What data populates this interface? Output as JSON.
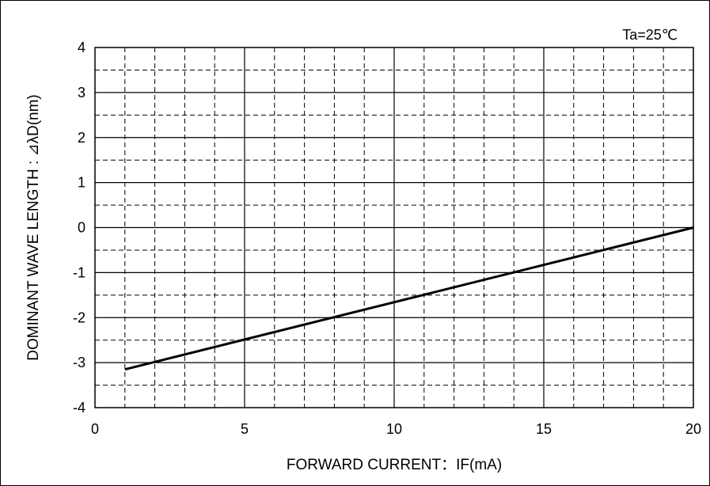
{
  "chart_data": {
    "type": "line",
    "annotation": "Ta=25℃",
    "xlabel": "FORWARD CURRENT：IF(mA)",
    "ylabel": "DOMINANT WAVE LENGTH : ⊿λD(nm)",
    "xlim": [
      0,
      20
    ],
    "ylim": [
      -4,
      4
    ],
    "x_ticks": [
      "0",
      "5",
      "10",
      "15",
      "20"
    ],
    "y_ticks": [
      "4",
      "3",
      "2",
      "1",
      "0",
      "-1",
      "-2",
      "-3",
      "-4"
    ],
    "x_minor_step": 1,
    "y_minor_step": 0.5,
    "grid": true,
    "series": [
      {
        "x": [
          1,
          20
        ],
        "y": [
          -3.15,
          0
        ]
      }
    ],
    "colors": {
      "line": "#000000",
      "grid": "#000000"
    }
  }
}
